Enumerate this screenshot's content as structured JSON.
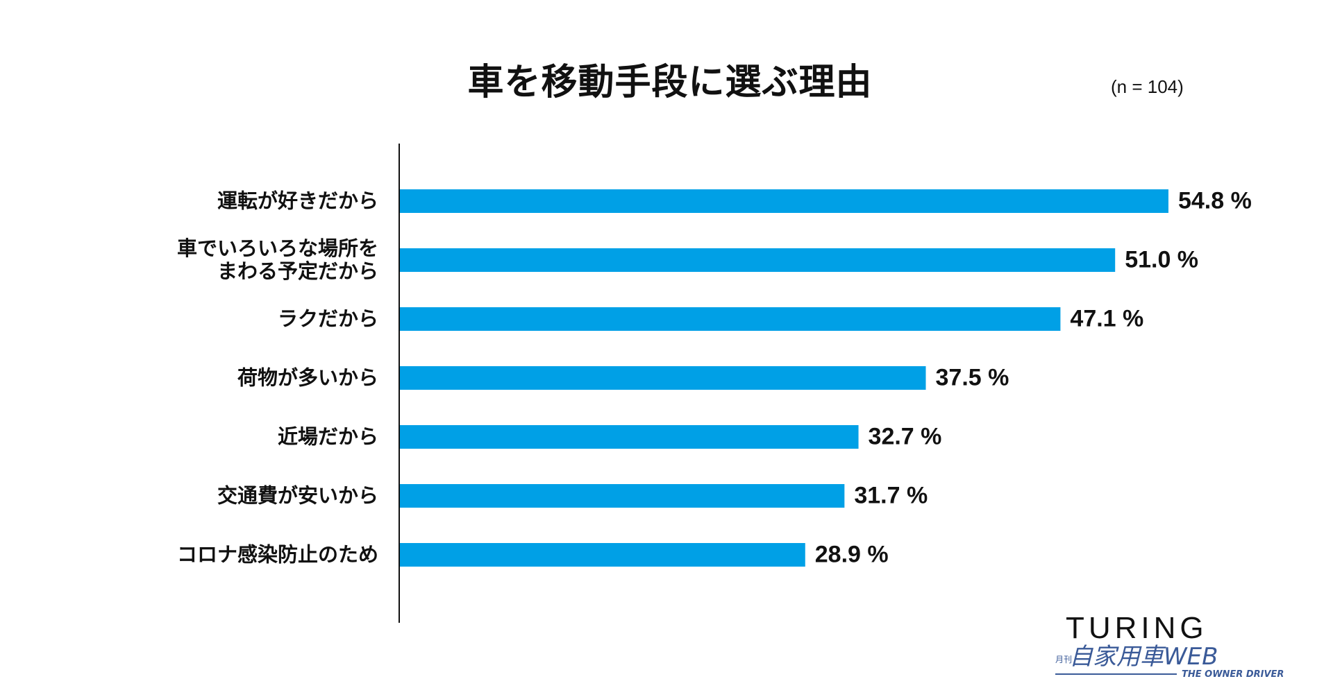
{
  "chart_data": {
    "type": "bar",
    "orientation": "horizontal",
    "title": "車を移動手段に選ぶ理由",
    "note": "(n = 104)",
    "categories": [
      "運転が好きだから",
      "車でいろいろな場所を\nまわる予定だから",
      "ラクだから",
      "荷物が多いから",
      "近場だから",
      "交通費が安いから",
      "コロナ感染防止のため"
    ],
    "values": [
      54.8,
      51.0,
      47.1,
      37.5,
      32.7,
      31.7,
      28.9
    ],
    "value_labels": [
      "54.8 %",
      "51.0 %",
      "47.1 %",
      "37.5 %",
      "32.7 %",
      "31.7 %",
      "28.9 %"
    ],
    "unit": "%",
    "xlim": [
      0,
      60
    ],
    "grid": false,
    "bar_color": "#00a0e6"
  },
  "logo": {
    "main": "TURING",
    "sub": "月刊自家用車WEB",
    "tagline": "THE OWNER DRIVER"
  }
}
